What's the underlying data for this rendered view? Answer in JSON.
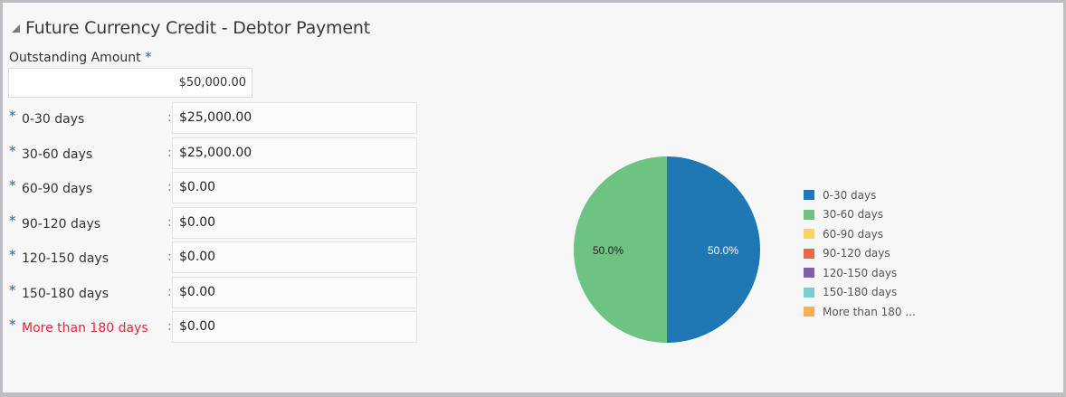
{
  "section": {
    "title": "Future Currency Credit - Debtor Payment",
    "collapse_icon": "triangle-collapse-icon"
  },
  "outstanding": {
    "label": "Outstanding Amount",
    "required_mark": "*",
    "value": "$50,000.00"
  },
  "buckets": [
    {
      "label": "0-30 days",
      "value": "$25,000.00",
      "required_mark": "*",
      "colon": ":"
    },
    {
      "label": "30-60 days",
      "value": "$25,000.00",
      "required_mark": "*",
      "colon": ":"
    },
    {
      "label": "60-90 days",
      "value": "$0.00",
      "required_mark": "*",
      "colon": ":"
    },
    {
      "label": "90-120 days",
      "value": "$0.00",
      "required_mark": "*",
      "colon": ":"
    },
    {
      "label": "120-150 days",
      "value": "$0.00",
      "required_mark": "*",
      "colon": ":"
    },
    {
      "label": "150-180 days",
      "value": "$0.00",
      "required_mark": "*",
      "colon": ":"
    },
    {
      "label": "More than 180 days",
      "value": "$0.00",
      "required_mark": "*",
      "colon": ":",
      "label_color": "#e0283c"
    }
  ],
  "chart_data": {
    "type": "pie",
    "title": "",
    "categories": [
      "0-30 days",
      "30-60 days",
      "60-90 days",
      "90-120 days",
      "120-150 days",
      "150-180 days",
      "More than 180 days"
    ],
    "values": [
      25000,
      25000,
      0,
      0,
      0,
      0,
      0
    ],
    "percent_labels": [
      "50.0%",
      "50.0%",
      "",
      "",
      "",
      "",
      ""
    ],
    "colors": [
      "#1f77b4",
      "#6cc382",
      "#fdd35c",
      "#ef6547",
      "#7d5fac",
      "#7acdd2",
      "#fbb04a"
    ],
    "legend_position": "right",
    "legend_labels": [
      "0-30 days",
      "30-60 days",
      "60-90 days",
      "90-120 days",
      "120-150 days",
      "150-180 days",
      "More than 180 ..."
    ]
  }
}
